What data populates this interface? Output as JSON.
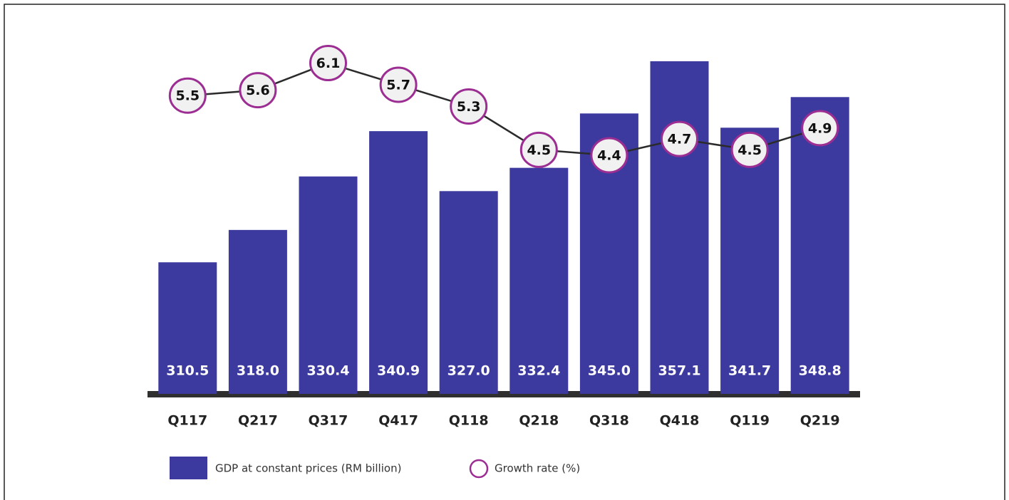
{
  "chart_data": {
    "type": "bar",
    "categories": [
      "Q117",
      "Q217",
      "Q317",
      "Q417",
      "Q118",
      "Q218",
      "Q318",
      "Q418",
      "Q119",
      "Q219"
    ],
    "series": [
      {
        "name": "GDP at constant prices (RM billion)",
        "type": "bar",
        "color": "#3d3a9f",
        "values": [
          310.5,
          318.0,
          330.4,
          340.9,
          327.0,
          332.4,
          345.0,
          357.1,
          341.7,
          348.8
        ],
        "value_labels": [
          "310.5",
          "318.0",
          "330.4",
          "340.9",
          "327.0",
          "332.4",
          "345.0",
          "357.1",
          "341.7",
          "348.8"
        ]
      },
      {
        "name": "Growth rate (%)",
        "type": "line",
        "axis": "y2",
        "color": "#9c2d92",
        "values": [
          5.5,
          5.6,
          6.1,
          5.7,
          5.3,
          4.5,
          4.4,
          4.7,
          4.5,
          4.9
        ]
      }
    ],
    "ylim": [
      280,
      368
    ],
    "y2lim": [
      0,
      7
    ],
    "grid": false,
    "legend": "bottom"
  }
}
